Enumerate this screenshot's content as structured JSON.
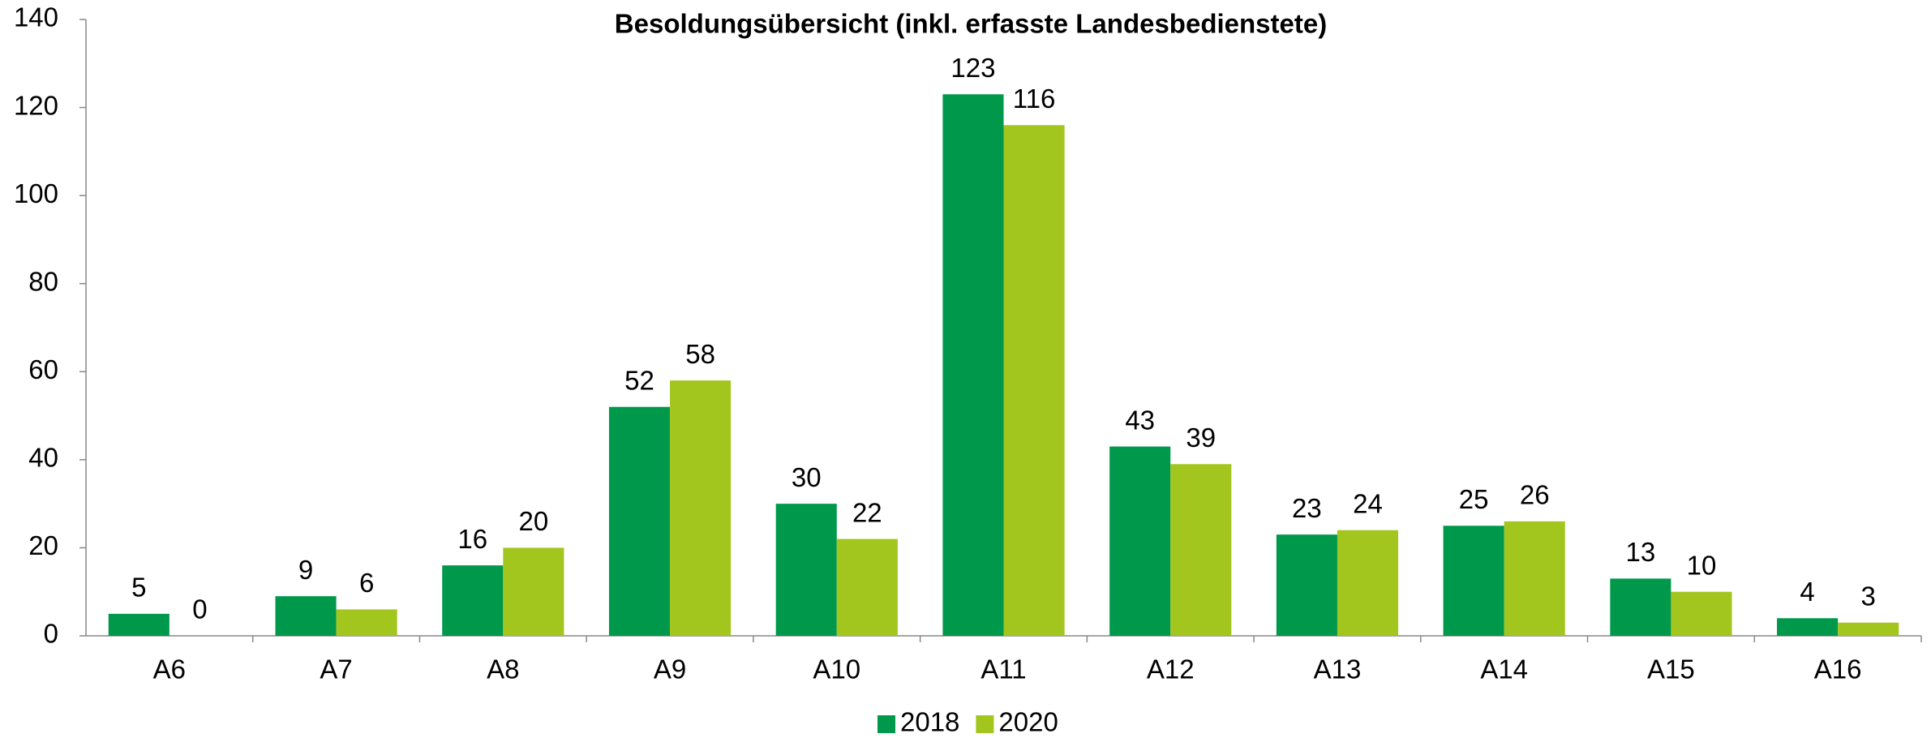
{
  "chart_data": {
    "type": "bar",
    "title": "Besoldungsübersicht (inkl. erfasste Landesbedienstete)",
    "categories": [
      "A6",
      "A7",
      "A8",
      "A9",
      "A10",
      "A11",
      "A12",
      "A13",
      "A14",
      "A15",
      "A16"
    ],
    "series": [
      {
        "name": "2018",
        "color": "#00994c",
        "values": [
          5,
          9,
          16,
          52,
          30,
          123,
          43,
          23,
          25,
          13,
          4
        ]
      },
      {
        "name": "2020",
        "color": "#a2c61e",
        "values": [
          0,
          6,
          20,
          58,
          22,
          116,
          39,
          24,
          26,
          10,
          3
        ]
      }
    ],
    "ylim": [
      0,
      140
    ],
    "yticks": [
      0,
      20,
      40,
      60,
      80,
      100,
      120,
      140
    ],
    "grid": false,
    "legend": "bottom"
  }
}
